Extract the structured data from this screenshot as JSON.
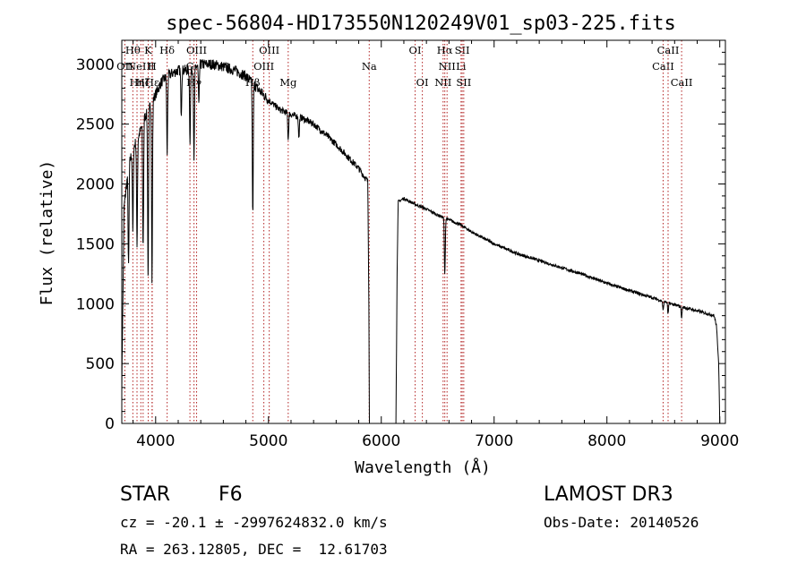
{
  "chart_data": {
    "type": "line",
    "title": "spec-56804-HD173550N120249V01_sp03-225.fits",
    "xlabel": "Wavelength (Å)",
    "ylabel": "Flux (relative)",
    "xlim": [
      3700,
      9050
    ],
    "ylim": [
      0,
      3200
    ],
    "xticks": [
      4000,
      5000,
      6000,
      7000,
      8000,
      9000
    ],
    "yticks": [
      0,
      500,
      1000,
      1500,
      2000,
      2500,
      3000
    ],
    "line_color": "#000000",
    "marker_color": "#b22222",
    "spectrum_continuum": [
      [
        3700,
        300
      ],
      [
        3720,
        1800
      ],
      [
        3760,
        2150
      ],
      [
        3800,
        2300
      ],
      [
        3850,
        2400
      ],
      [
        3900,
        2550
      ],
      [
        3950,
        2650
      ],
      [
        4000,
        2750
      ],
      [
        4050,
        2850
      ],
      [
        4100,
        2900
      ],
      [
        4200,
        2950
      ],
      [
        4300,
        2950
      ],
      [
        4400,
        3000
      ],
      [
        4500,
        3000
      ],
      [
        4600,
        2980
      ],
      [
        4700,
        2950
      ],
      [
        4800,
        2900
      ],
      [
        4900,
        2800
      ],
      [
        5000,
        2700
      ],
      [
        5100,
        2620
      ],
      [
        5200,
        2580
      ],
      [
        5300,
        2550
      ],
      [
        5400,
        2500
      ],
      [
        5500,
        2420
      ],
      [
        5600,
        2330
      ],
      [
        5700,
        2230
      ],
      [
        5800,
        2130
      ],
      [
        5880,
        2020
      ],
      [
        5890,
        1000
      ],
      [
        5895,
        0
      ],
      [
        6130,
        0
      ],
      [
        6140,
        1250
      ],
      [
        6150,
        1850
      ],
      [
        6200,
        1880
      ],
      [
        6300,
        1830
      ],
      [
        6400,
        1790
      ],
      [
        6500,
        1740
      ],
      [
        6600,
        1700
      ],
      [
        6700,
        1660
      ],
      [
        6800,
        1600
      ],
      [
        6900,
        1550
      ],
      [
        7000,
        1500
      ],
      [
        7200,
        1420
      ],
      [
        7400,
        1360
      ],
      [
        7600,
        1300
      ],
      [
        7800,
        1240
      ],
      [
        8000,
        1170
      ],
      [
        8200,
        1110
      ],
      [
        8400,
        1050
      ],
      [
        8600,
        990
      ],
      [
        8800,
        940
      ],
      [
        8950,
        900
      ],
      [
        8970,
        820
      ],
      [
        8990,
        520
      ],
      [
        9000,
        0
      ]
    ],
    "absorption_lines": [
      {
        "wave": 3760,
        "depth": 850
      },
      {
        "wave": 3798,
        "depth": 700
      },
      {
        "wave": 3835,
        "depth": 900
      },
      {
        "wave": 3889,
        "depth": 1050
      },
      {
        "wave": 3933,
        "depth": 1400
      },
      {
        "wave": 3968,
        "depth": 1500
      },
      {
        "wave": 4102,
        "depth": 650
      },
      {
        "wave": 4227,
        "depth": 350
      },
      {
        "wave": 4305,
        "depth": 600
      },
      {
        "wave": 4340,
        "depth": 800
      },
      {
        "wave": 4383,
        "depth": 350
      },
      {
        "wave": 4861,
        "depth": 1100
      },
      {
        "wave": 5175,
        "depth": 220
      },
      {
        "wave": 5270,
        "depth": 180
      },
      {
        "wave": 6563,
        "depth": 480
      },
      {
        "wave": 8498,
        "depth": 80
      },
      {
        "wave": 8542,
        "depth": 90
      },
      {
        "wave": 8662,
        "depth": 90
      }
    ],
    "line_markers": [
      {
        "wave": 3727,
        "label": "OII",
        "row": 1
      },
      {
        "wave": 3798,
        "label": "Hθ",
        "row": 0
      },
      {
        "wave": 3835,
        "label": "Hη",
        "row": 2
      },
      {
        "wave": 3869,
        "label": "NeIII",
        "row": 1
      },
      {
        "wave": 3889,
        "label": "Hζ",
        "row": 2
      },
      {
        "wave": 3934,
        "label": "K",
        "row": 0
      },
      {
        "wave": 3968,
        "label": "H",
        "row": 1
      },
      {
        "wave": 3970,
        "label": "Hε",
        "row": 2
      },
      {
        "wave": 4102,
        "label": "Hδ",
        "row": 0
      },
      {
        "wave": 4304,
        "label": "G",
        "row": 1
      },
      {
        "wave": 4340,
        "label": "Hγ",
        "row": 2
      },
      {
        "wave": 4363,
        "label": "OIII",
        "row": 0
      },
      {
        "wave": 4861,
        "label": "Hβ",
        "row": 2
      },
      {
        "wave": 4959,
        "label": "OIII",
        "row": 1
      },
      {
        "wave": 5007,
        "label": "OIII",
        "row": 0
      },
      {
        "wave": 5175,
        "label": "Mg",
        "row": 2
      },
      {
        "wave": 5893,
        "label": "Na",
        "row": 1
      },
      {
        "wave": 6300,
        "label": "OI",
        "row": 0
      },
      {
        "wave": 6364,
        "label": "OI",
        "row": 2
      },
      {
        "wave": 6548,
        "label": "NII",
        "row": 2
      },
      {
        "wave": 6563,
        "label": "Hα",
        "row": 0
      },
      {
        "wave": 6583,
        "label": "NII",
        "row": 1
      },
      {
        "wave": 6707,
        "label": "Li",
        "row": 1
      },
      {
        "wave": 6717,
        "label": "SII",
        "row": 0
      },
      {
        "wave": 6731,
        "label": "SII",
        "row": 2
      },
      {
        "wave": 8498,
        "label": "CaII",
        "row": 1
      },
      {
        "wave": 8542,
        "label": "CaII",
        "row": 0
      },
      {
        "wave": 8662,
        "label": "CaII",
        "row": 2
      }
    ]
  },
  "info": {
    "object_type": "STAR",
    "subclass": "F6",
    "survey": "LAMOST DR3",
    "redshift_line": "cz = -20.1 ± -2997624832.0 km/s",
    "obs_date_line": "Obs-Date: 20140526",
    "coords_line": "RA = 263.12805, DEC =  12.61703"
  }
}
